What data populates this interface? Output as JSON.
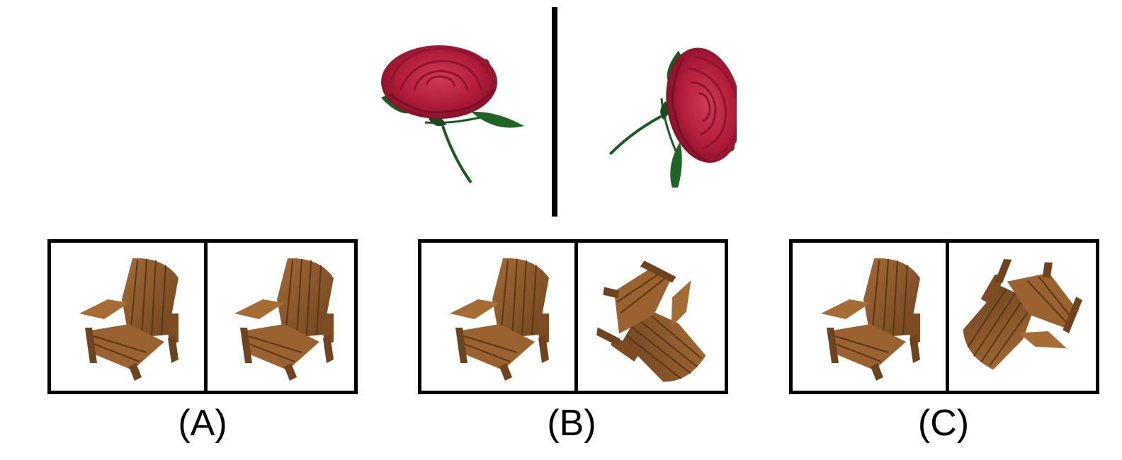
{
  "options": {
    "a": {
      "label": "(A)"
    },
    "b": {
      "label": "(B)"
    },
    "c": {
      "label": "(C)"
    }
  },
  "icons": {
    "reference_left": "rose-icon",
    "reference_right": "rose-rotated-icon",
    "chair": "adirondack-chair-icon"
  },
  "colors": {
    "frame": "#000000",
    "rose": "#b01c3a",
    "leaf": "#1d5a22",
    "wood": "#8b5a2b"
  }
}
